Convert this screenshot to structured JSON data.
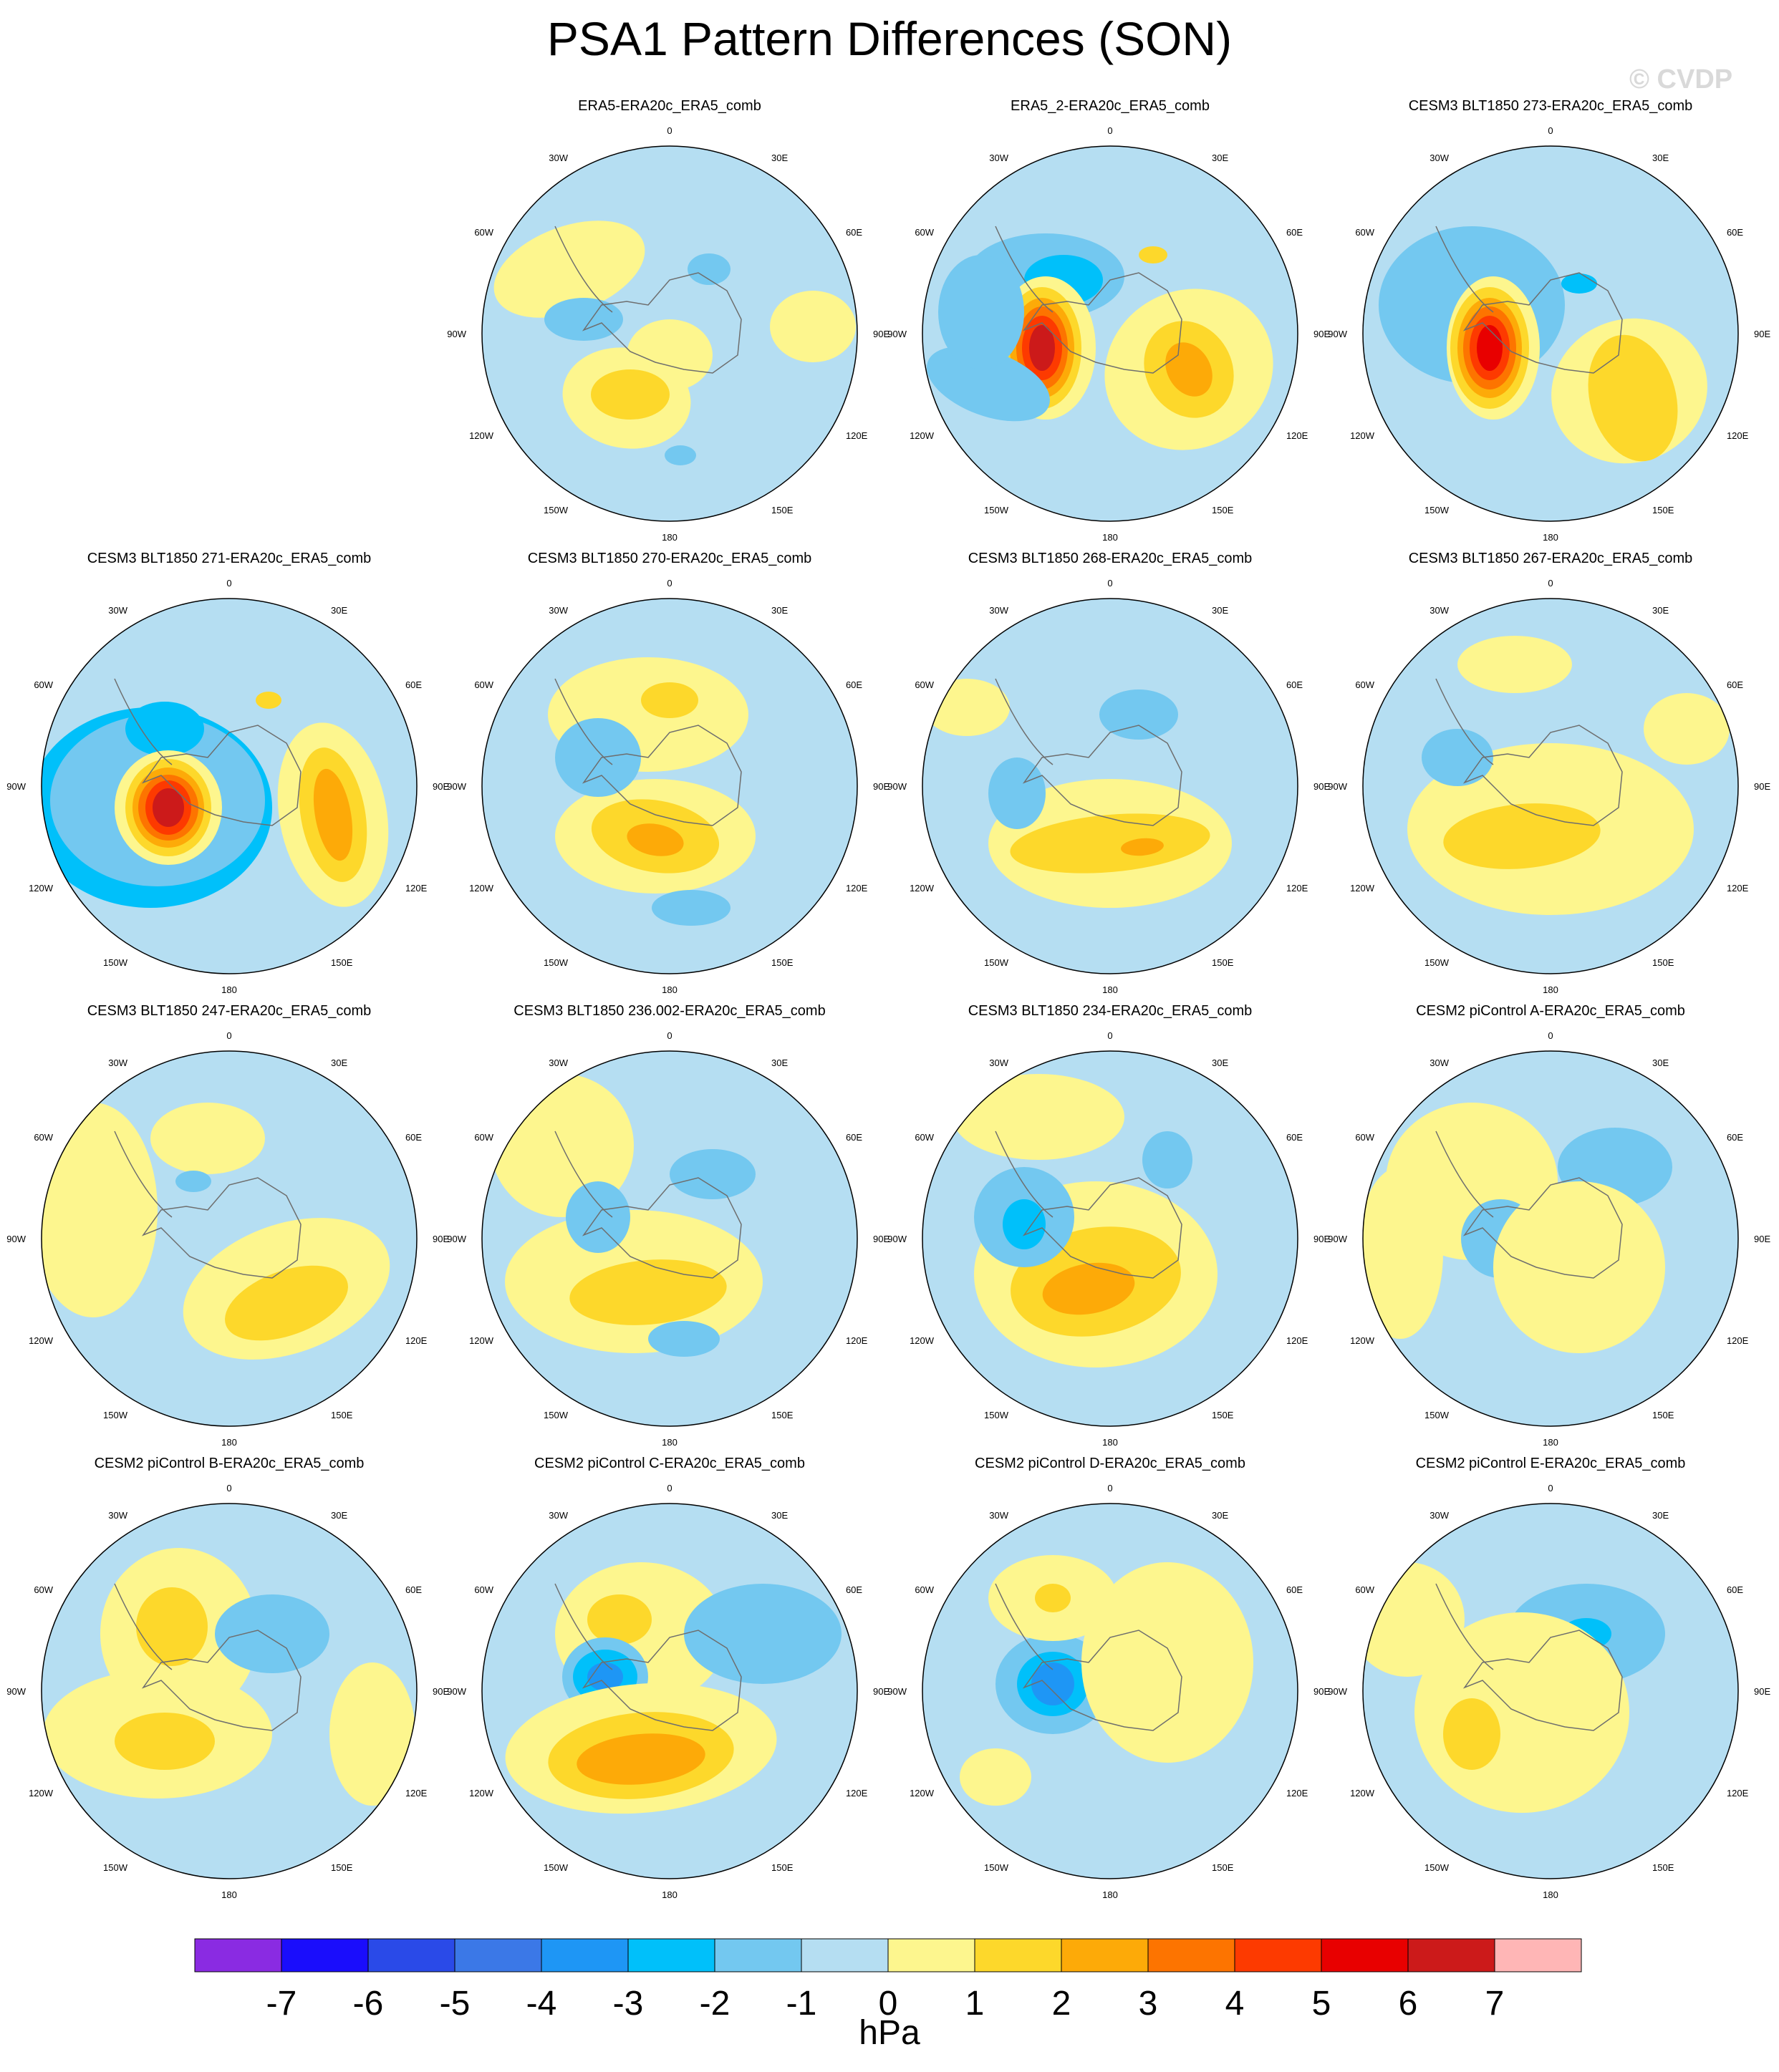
{
  "title": "PSA1 Pattern Differences (SON)",
  "watermark": "© CVDP",
  "chart_data": {
    "type": "heatmap",
    "projection": "south-polar-stereographic",
    "variable": "PSA1 pattern difference",
    "units": "hPa",
    "grid": false,
    "colorbar": {
      "placement": "bottom",
      "ticks": [
        -7,
        -6,
        -5,
        -4,
        -3,
        -2,
        -1,
        0,
        1,
        2,
        3,
        4,
        5,
        6,
        7
      ],
      "colors": [
        "#8a2be2",
        "#1a0dfc",
        "#2a4ae8",
        "#3b78e7",
        "#1e96f5",
        "#00c0fa",
        "#73c8f0",
        "#b5def2",
        "#fdf68e",
        "#fdd82b",
        "#fdaa08",
        "#fd7400",
        "#fd3a00",
        "#e80000",
        "#cc1a1a",
        "#ffb6b6"
      ]
    },
    "longitude_labels": [
      "0",
      "30E",
      "60E",
      "90E",
      "120E",
      "150E",
      "180",
      "150W",
      "120W",
      "90W",
      "60W",
      "30W"
    ],
    "panels": [
      {
        "title": "ERA5-ERA20c_ERA5_comb"
      },
      {
        "title": "ERA5_2-ERA20c_ERA5_comb"
      },
      {
        "title": "CESM3 BLT1850 273-ERA20c_ERA5_comb"
      },
      {
        "title": "CESM3 BLT1850 271-ERA20c_ERA5_comb"
      },
      {
        "title": "CESM3 BLT1850 270-ERA20c_ERA5_comb"
      },
      {
        "title": "CESM3 BLT1850 268-ERA20c_ERA5_comb"
      },
      {
        "title": "CESM3 BLT1850 267-ERA20c_ERA5_comb"
      },
      {
        "title": "CESM3 BLT1850 247-ERA20c_ERA5_comb"
      },
      {
        "title": "CESM3 BLT1850 236.002-ERA20c_ERA5_comb"
      },
      {
        "title": "CESM3 BLT1850 234-ERA20c_ERA5_comb"
      },
      {
        "title": "CESM2 piControl A-ERA20c_ERA5_comb"
      },
      {
        "title": "CESM2 piControl B-ERA20c_ERA5_comb"
      },
      {
        "title": "CESM2 piControl C-ERA20c_ERA5_comb"
      },
      {
        "title": "CESM2 piControl D-ERA20c_ERA5_comb"
      },
      {
        "title": "CESM2 piControl E-ERA20c_ERA5_comb"
      }
    ]
  }
}
